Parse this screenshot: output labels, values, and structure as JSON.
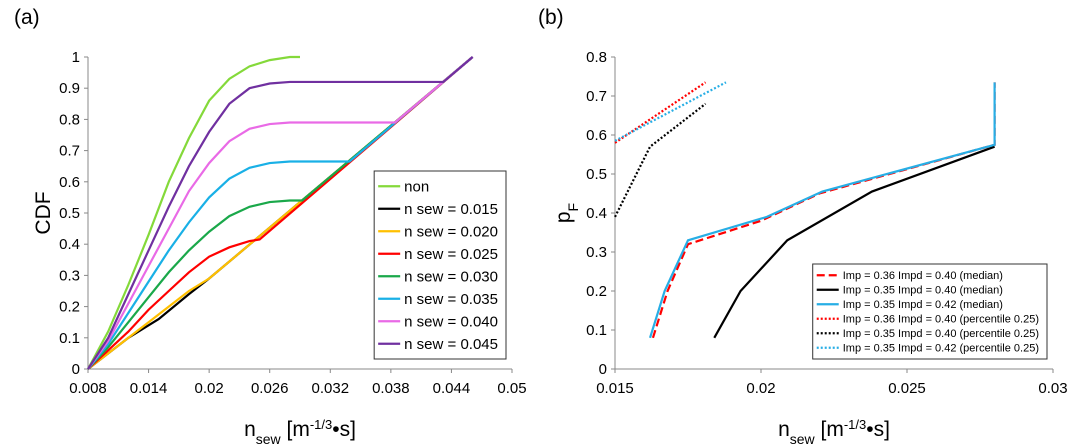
{
  "chart_data": [
    {
      "type": "line",
      "title": "(a)",
      "y_label": "CDF",
      "x_label": {
        "base": "n",
        "sub": "sew",
        "pre": " [m",
        "sup": "-1/3",
        "post": "•s]"
      },
      "xlim": [
        0.008,
        0.05
      ],
      "xticks": [
        0.008,
        0.014,
        0.02,
        0.026,
        0.032,
        0.038,
        0.044,
        0.05
      ],
      "ylim": [
        0,
        1
      ],
      "yticks": [
        0,
        0.1,
        0.2,
        0.3,
        0.4,
        0.5,
        0.6,
        0.7,
        0.8,
        0.9,
        1
      ],
      "legend": "lower right",
      "series": [
        {
          "name": "non",
          "color": "#84d93a",
          "dash": "solid",
          "x": [
            0.008,
            0.01,
            0.012,
            0.014,
            0.016,
            0.018,
            0.02,
            0.022,
            0.024,
            0.026,
            0.028,
            0.029
          ],
          "values": [
            0,
            0.12,
            0.27,
            0.43,
            0.6,
            0.74,
            0.86,
            0.93,
            0.97,
            0.99,
            1,
            1
          ]
        },
        {
          "name": "n sew = 0.015",
          "color": "#000000",
          "dash": "solid",
          "x": [
            0.008,
            0.01,
            0.012,
            0.014,
            0.015,
            0.018,
            0.02,
            0.0461
          ],
          "values": [
            0,
            0.05,
            0.1,
            0.14,
            0.16,
            0.24,
            0.29,
            1
          ]
        },
        {
          "name": "n sew = 0.020",
          "color": "#ffc000",
          "dash": "solid",
          "x": [
            0.008,
            0.01,
            0.012,
            0.014,
            0.016,
            0.018,
            0.02,
            0.0461
          ],
          "values": [
            0,
            0.05,
            0.1,
            0.15,
            0.2,
            0.25,
            0.29,
            1
          ]
        },
        {
          "name": "n sew = 0.025",
          "color": "#ff0000",
          "dash": "solid",
          "x": [
            0.008,
            0.01,
            0.012,
            0.014,
            0.016,
            0.018,
            0.02,
            0.022,
            0.024,
            0.025,
            0.0461
          ],
          "values": [
            0,
            0.06,
            0.12,
            0.19,
            0.25,
            0.31,
            0.36,
            0.39,
            0.41,
            0.415,
            1
          ]
        },
        {
          "name": "n sew = 0.030",
          "color": "#1aa84a",
          "dash": "solid",
          "x": [
            0.008,
            0.01,
            0.012,
            0.014,
            0.016,
            0.018,
            0.02,
            0.022,
            0.024,
            0.026,
            0.028,
            0.0292,
            0.0461
          ],
          "values": [
            0,
            0.07,
            0.15,
            0.23,
            0.31,
            0.38,
            0.44,
            0.49,
            0.52,
            0.535,
            0.54,
            0.54,
            1
          ]
        },
        {
          "name": "n sew = 0.035",
          "color": "#19b0e6",
          "dash": "solid",
          "x": [
            0.008,
            0.01,
            0.012,
            0.014,
            0.016,
            0.018,
            0.02,
            0.022,
            0.024,
            0.026,
            0.028,
            0.0339,
            0.0461
          ],
          "values": [
            0,
            0.08,
            0.18,
            0.28,
            0.38,
            0.47,
            0.55,
            0.61,
            0.645,
            0.66,
            0.665,
            0.665,
            1
          ]
        },
        {
          "name": "n sew = 0.040",
          "color": "#e96ae6",
          "dash": "solid",
          "x": [
            0.008,
            0.01,
            0.012,
            0.014,
            0.016,
            0.018,
            0.02,
            0.022,
            0.024,
            0.026,
            0.028,
            0.0384,
            0.0461
          ],
          "values": [
            0,
            0.09,
            0.21,
            0.33,
            0.45,
            0.57,
            0.66,
            0.73,
            0.77,
            0.785,
            0.79,
            0.79,
            1
          ]
        },
        {
          "name": "n sew = 0.045",
          "color": "#7030a0",
          "dash": "solid",
          "x": [
            0.008,
            0.01,
            0.012,
            0.014,
            0.016,
            0.018,
            0.02,
            0.022,
            0.024,
            0.026,
            0.028,
            0.0432,
            0.0461
          ],
          "values": [
            0,
            0.1,
            0.24,
            0.38,
            0.52,
            0.65,
            0.76,
            0.85,
            0.9,
            0.915,
            0.92,
            0.92,
            1
          ]
        }
      ]
    },
    {
      "type": "line",
      "title": "(b)",
      "y_label": {
        "base": "p",
        "sub": "F"
      },
      "x_label": {
        "base": "n",
        "sub": "sew",
        "pre": " [m",
        "sup": "-1/3",
        "post": "•s]"
      },
      "xlim": [
        0.015,
        0.03
      ],
      "xticks": [
        0.015,
        0.02,
        0.025,
        0.03
      ],
      "ylim": [
        0,
        0.8
      ],
      "yticks": [
        0,
        0.1,
        0.2,
        0.3,
        0.4,
        0.5,
        0.6,
        0.7,
        0.8
      ],
      "legend": "lower right",
      "series": [
        {
          "name": "Imp = 0.36 Impd = 0.40 (median)",
          "color": "#ff0000",
          "dash": "dashed",
          "x": [
            0.0163,
            0.0168,
            0.0175,
            0.02,
            0.022,
            0.028,
            0.028
          ],
          "values": [
            0.08,
            0.2,
            0.32,
            0.38,
            0.45,
            0.575,
            0.735
          ]
        },
        {
          "name": "Imp = 0.35 Impd = 0.40 (median)",
          "color": "#000000",
          "dash": "solid",
          "x": [
            0.0184,
            0.0193,
            0.0209,
            0.0238,
            0.028
          ],
          "values": [
            0.08,
            0.2,
            0.33,
            0.455,
            0.57
          ]
        },
        {
          "name": "Imp = 0.35 Impd = 0.42 (median)",
          "color": "#27aee5",
          "dash": "solid",
          "x": [
            0.0162,
            0.0167,
            0.0175,
            0.0202,
            0.0221,
            0.028,
            0.028
          ],
          "values": [
            0.08,
            0.2,
            0.33,
            0.39,
            0.455,
            0.575,
            0.735
          ]
        },
        {
          "name": "Imp = 0.36 Impd = 0.40 (percentile 0.25)",
          "color": "#ff0000",
          "dash": "dotted",
          "x": [
            0.015,
            0.0181
          ],
          "values": [
            0.58,
            0.735
          ]
        },
        {
          "name": "Imp = 0.35 Impd = 0.40 (percentile 0.25)",
          "color": "#000000",
          "dash": "dotted",
          "x": [
            0.015,
            0.0162,
            0.0181
          ],
          "values": [
            0.39,
            0.57,
            0.68
          ]
        },
        {
          "name": "Imp = 0.35 Impd = 0.42 (percentile 0.25)",
          "color": "#27aee5",
          "dash": "dotted",
          "x": [
            0.015,
            0.0188
          ],
          "values": [
            0.585,
            0.735
          ]
        }
      ]
    }
  ]
}
